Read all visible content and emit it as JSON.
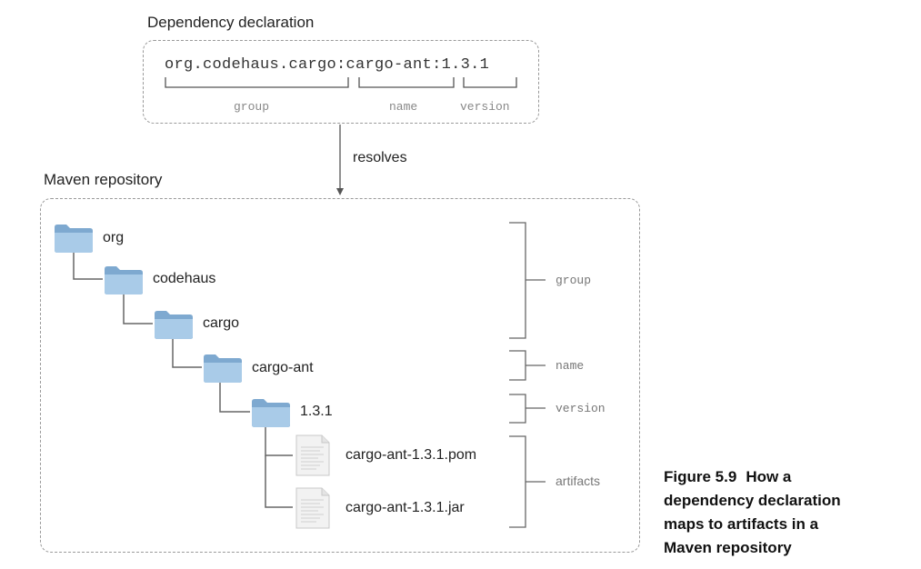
{
  "declaration": {
    "title": "Dependency declaration",
    "coordinate_parts": [
      "org.codehaus.cargo",
      ":",
      "cargo-ant",
      ":",
      "1.3.1"
    ],
    "labels": {
      "group": "group",
      "name": "name",
      "version": "version"
    }
  },
  "arrow_label": "resolves",
  "repository": {
    "title": "Maven repository",
    "folders": [
      "org",
      "codehaus",
      "cargo",
      "cargo-ant",
      "1.3.1"
    ],
    "files": [
      "cargo-ant-1.3.1.pom",
      "cargo-ant-1.3.1.jar"
    ],
    "brackets": {
      "group": "group",
      "name": "name",
      "version": "version",
      "artifacts": "artifacts"
    }
  },
  "caption": {
    "figure": "Figure 5.9",
    "lines": [
      "How a",
      "dependency declaration",
      "maps to artifacts in a",
      "Maven repository"
    ]
  },
  "colors": {
    "folder": "#a9cbe8",
    "folder_dark": "#7ea9d0",
    "line": "#666666",
    "dashed": "#9a9a9a"
  }
}
